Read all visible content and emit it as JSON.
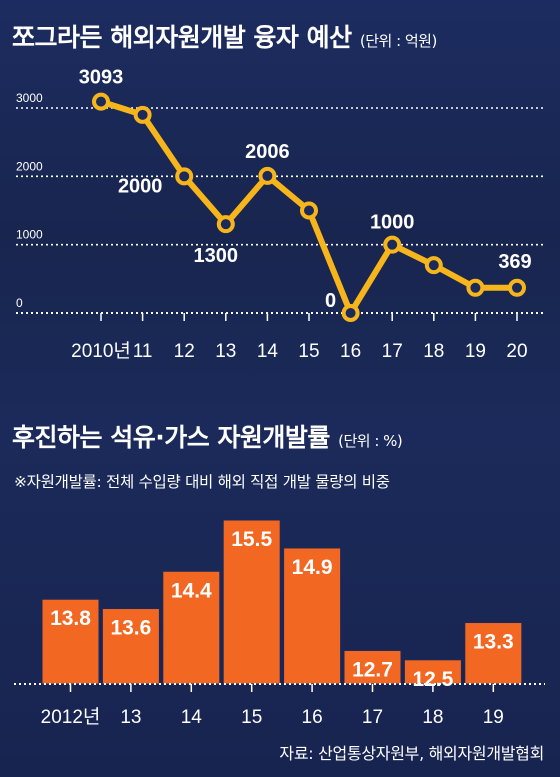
{
  "chart1": {
    "title": "쪼그라든 해외자원개발 융자 예산",
    "unit": "(단위 : 억원)"
  },
  "chart2": {
    "title": "후진하는 석유·가스 자원개발률",
    "unit": "(단위 : %)",
    "note": "※자원개발률: 전체 수입량 대비 해외 직접 개발 물량의 비중"
  },
  "source": "자료: 산업통상자원부, 해외자원개발협회",
  "colors": {
    "line": "#f7b51c",
    "bar": "#f26722",
    "background": "#1b2a5a"
  },
  "chart_data": [
    {
      "type": "line",
      "title": "쪼그라든 해외자원개발 융자 예산",
      "ylabel": "(단위 : 억원)",
      "x": [
        "2010년",
        "11",
        "12",
        "13",
        "14",
        "15",
        "16",
        "17",
        "18",
        "19",
        "20"
      ],
      "values": [
        3093,
        2900,
        2000,
        1300,
        2006,
        1500,
        0,
        1000,
        700,
        369,
        369
      ],
      "data_labels": [
        "3093",
        "",
        "2000",
        "1300",
        "2006",
        "",
        "0",
        "1000",
        "",
        "",
        "369"
      ],
      "yticks": [
        "0",
        "1000",
        "2000",
        "3000"
      ],
      "ylim": [
        0,
        3300
      ],
      "grid": true
    },
    {
      "type": "bar",
      "title": "후진하는 석유·가스 자원개발률",
      "ylabel": "(단위 : %)",
      "categories": [
        "2012년",
        "13",
        "14",
        "15",
        "16",
        "17",
        "18",
        "19"
      ],
      "values": [
        13.8,
        13.6,
        14.4,
        15.5,
        14.9,
        12.7,
        12.5,
        13.3
      ],
      "data_labels": [
        "13.8",
        "13.6",
        "14.4",
        "15.5",
        "14.9",
        "12.7",
        "12.5",
        "13.3"
      ]
    }
  ]
}
